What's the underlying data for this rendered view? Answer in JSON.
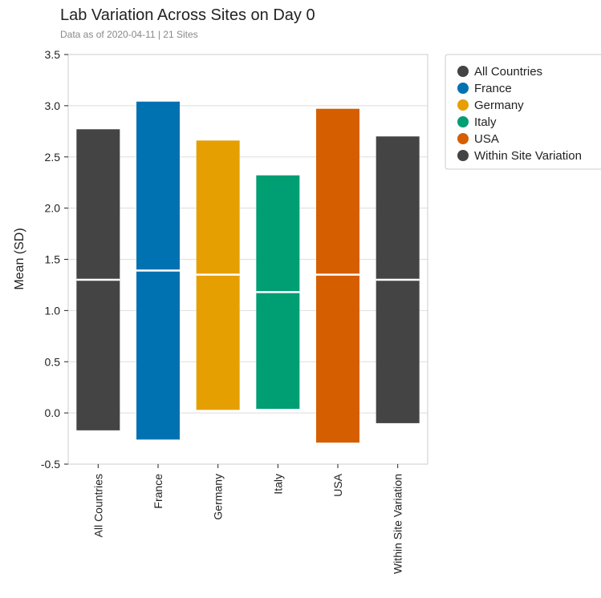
{
  "title": "Lab Variation Across Sites on Day 0",
  "subtitle": "Data as of 2020-04-11 | 21 Sites",
  "chart_data": {
    "type": "bar",
    "title": "Lab Variation Across Sites on Day 0",
    "subtitle": "Data as of 2020-04-11 | 21 Sites",
    "ylabel": "Mean (SD)",
    "xlabel": "",
    "ylim": [
      -0.5,
      3.5
    ],
    "yticks": [
      "-0.5",
      "0.0",
      "0.5",
      "1.0",
      "1.5",
      "2.0",
      "2.5",
      "3.0",
      "3.5"
    ],
    "grid": true,
    "legend_position": "top-right",
    "categories": [
      "All Countries",
      "France",
      "Germany",
      "Italy",
      "USA",
      "Within Site Variation"
    ],
    "series": [
      {
        "name": "All Countries",
        "mean": 1.3,
        "low": -0.17,
        "high": 2.77,
        "color": "#444444"
      },
      {
        "name": "France",
        "mean": 1.39,
        "low": -0.26,
        "high": 3.04,
        "color": "#0072B2"
      },
      {
        "name": "Germany",
        "mean": 1.35,
        "low": 0.03,
        "high": 2.66,
        "color": "#E69F00"
      },
      {
        "name": "Italy",
        "mean": 1.18,
        "low": 0.04,
        "high": 2.32,
        "color": "#009E73"
      },
      {
        "name": "USA",
        "mean": 1.35,
        "low": -0.29,
        "high": 2.97,
        "color": "#D55E00"
      },
      {
        "name": "Within Site Variation",
        "mean": 1.3,
        "low": -0.1,
        "high": 2.7,
        "color": "#444444"
      }
    ]
  }
}
